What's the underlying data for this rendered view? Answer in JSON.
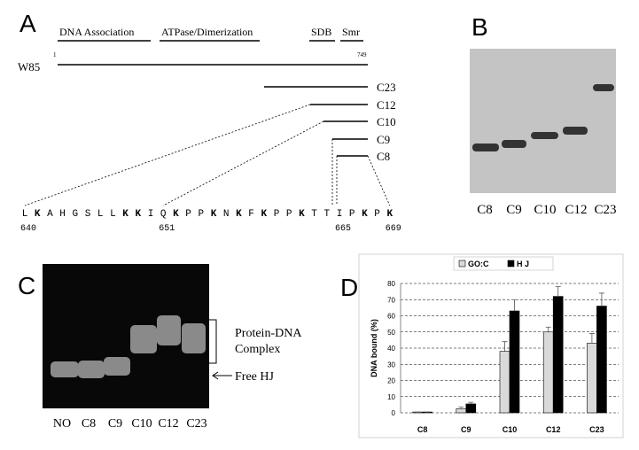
{
  "panel_a": {
    "label": "A",
    "domains": [
      "DNA Association",
      "ATPase/Dimerization",
      "SDB",
      "Smr"
    ],
    "construct": "W85",
    "start": 1,
    "end": 749,
    "fragments": [
      "C23",
      "C12",
      "C10",
      "C9",
      "C8"
    ],
    "residues": [
      "L",
      "K",
      "A",
      "H",
      "G",
      "S",
      "L",
      "L",
      "K",
      "K",
      "I",
      "Q",
      "K",
      "P",
      "P",
      "K",
      "N",
      "K",
      "F",
      "K",
      "P",
      "P",
      "K",
      "T",
      "T",
      "I",
      "P",
      "K",
      "P",
      "K"
    ],
    "bold": [
      false,
      true,
      false,
      false,
      false,
      false,
      false,
      false,
      true,
      true,
      false,
      false,
      true,
      false,
      false,
      true,
      false,
      true,
      false,
      true,
      false,
      false,
      true,
      false,
      false,
      false,
      false,
      true,
      false,
      true
    ],
    "positions": [
      640,
      651,
      665,
      669
    ]
  },
  "panel_b": {
    "label": "B",
    "lanes": [
      "C8",
      "C9",
      "C10",
      "C12",
      "C23"
    ]
  },
  "panel_c": {
    "label": "C",
    "lanes": [
      "NO",
      "C8",
      "C9",
      "C10",
      "C12",
      "C23"
    ],
    "complex_label": [
      "Protein-DNA",
      "Complex"
    ],
    "free_label": "Free HJ"
  },
  "chart_data": {
    "type": "bar",
    "panel_label": "D",
    "y_label": "DNA bound (%)",
    "categories": [
      "C8",
      "C9",
      "C10",
      "C12",
      "C23"
    ],
    "series": [
      {
        "name": "GO:C",
        "color": "#d9d9d9",
        "values": [
          0.5,
          2.5,
          38,
          50,
          43
        ],
        "errors": [
          0,
          1,
          6,
          3,
          6
        ]
      },
      {
        "name": "H J",
        "color": "#000000",
        "values": [
          0.5,
          5.5,
          63,
          72,
          66
        ],
        "errors": [
          0,
          1,
          7,
          6,
          8
        ]
      }
    ],
    "ylim": [
      0,
      80
    ],
    "yticks": [
      0,
      10,
      20,
      30,
      40,
      50,
      60,
      70,
      80
    ],
    "grid": true,
    "legend": "top"
  }
}
